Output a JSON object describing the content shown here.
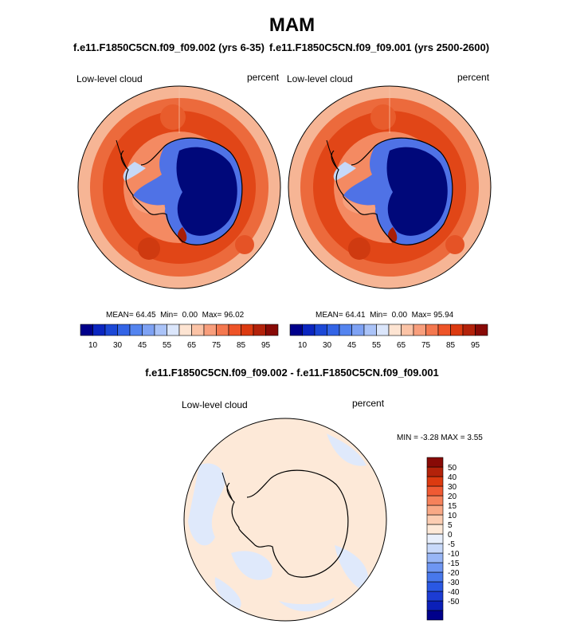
{
  "page_title": "MAM",
  "panels": [
    {
      "subtitle": "f.e11.F1850C5CN.f09_f09.002 (yrs 6-35)",
      "variable": "Low-level cloud",
      "units": "percent",
      "stats": {
        "mean_label": "MEAN=",
        "mean": "64.45",
        "min_label": "Min=",
        "min": "0.00",
        "max_label": "Max=",
        "max": "96.02"
      }
    },
    {
      "subtitle": "f.e11.F1850C5CN.f09_f09.001 (yrs 2500-2600)",
      "variable": "Low-level cloud",
      "units": "percent",
      "stats": {
        "mean_label": "MEAN=",
        "mean": "64.41",
        "min_label": "Min=",
        "min": "0.00",
        "max_label": "Max=",
        "max": "95.94"
      }
    }
  ],
  "abs_colorbar": {
    "colors": [
      "#00008b",
      "#0b26c0",
      "#1c48d6",
      "#3364e6",
      "#5484ef",
      "#7ea2f4",
      "#aac3f8",
      "#dbe6fb",
      "#fde4d2",
      "#fbc3a6",
      "#f89e7c",
      "#f4784f",
      "#ee5428",
      "#dc3a10",
      "#b3220a",
      "#880a06"
    ],
    "tick_labels": [
      "10",
      "30",
      "45",
      "55",
      "65",
      "75",
      "85",
      "95"
    ]
  },
  "diff_panel": {
    "subtitle": "f.e11.F1850C5CN.f09_f09.002 - f.e11.F1850C5CN.f09_f09.001",
    "variable": "Low-level cloud",
    "units": "percent",
    "range_text": "MIN = -3.28 MAX =  3.55",
    "colorbar": {
      "colors": [
        "#00008b",
        "#0b1fb8",
        "#1c3cd4",
        "#2a58e3",
        "#4878ec",
        "#6e96f2",
        "#98b6f6",
        "#c8d9fa",
        "#e8effc",
        "#fde9d8",
        "#fccdb2",
        "#f9a986",
        "#f6825b",
        "#f05a33",
        "#dc3a10",
        "#b3220a",
        "#880a06"
      ],
      "tick_labels": [
        "50",
        "40",
        "30",
        "20",
        "15",
        "10",
        "5",
        "0",
        "-5",
        "-10",
        "-15",
        "-20",
        "-30",
        "-40",
        "-50"
      ]
    }
  }
}
